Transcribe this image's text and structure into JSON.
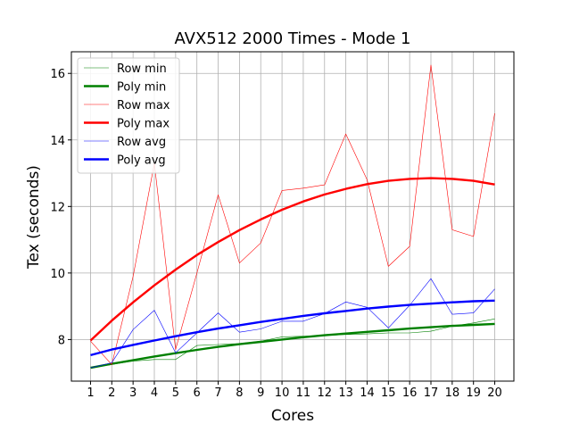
{
  "chart_data": {
    "type": "line",
    "title": "AVX512 2000 Times - Mode 1",
    "xlabel": "Cores",
    "ylabel": "Tex (seconds)",
    "x": [
      1,
      2,
      3,
      4,
      5,
      6,
      7,
      8,
      9,
      10,
      11,
      12,
      13,
      14,
      15,
      16,
      17,
      18,
      19,
      20
    ],
    "xlim": [
      0.1,
      20.9
    ],
    "ylim": [
      6.75,
      16.65
    ],
    "yticks": [
      8,
      10,
      12,
      14,
      16
    ],
    "grid": true,
    "legend_position": "upper-left",
    "series": [
      {
        "name": "Row min",
        "color": "#008000",
        "style": "thin",
        "values": [
          7.15,
          7.25,
          7.35,
          7.4,
          7.4,
          7.82,
          7.85,
          7.88,
          7.95,
          8.08,
          8.1,
          8.12,
          8.15,
          8.17,
          8.2,
          8.2,
          8.25,
          8.4,
          8.5,
          8.62
        ]
      },
      {
        "name": "Poly min",
        "color": "#008000",
        "style": "thick",
        "values": [
          7.15,
          7.27,
          7.38,
          7.49,
          7.59,
          7.69,
          7.78,
          7.86,
          7.93,
          8.0,
          8.07,
          8.13,
          8.18,
          8.23,
          8.28,
          8.33,
          8.37,
          8.41,
          8.44,
          8.47
        ]
      },
      {
        "name": "Row max",
        "color": "#ff0000",
        "style": "thin",
        "values": [
          7.95,
          7.25,
          9.9,
          13.3,
          7.7,
          10.0,
          12.35,
          10.3,
          10.9,
          12.48,
          12.55,
          12.65,
          14.18,
          12.8,
          10.2,
          10.8,
          16.25,
          11.3,
          11.1,
          14.8
        ]
      },
      {
        "name": "Poly max",
        "color": "#ff0000",
        "style": "thick",
        "values": [
          7.97,
          8.57,
          9.12,
          9.63,
          10.1,
          10.54,
          10.93,
          11.29,
          11.61,
          11.9,
          12.15,
          12.36,
          12.53,
          12.67,
          12.77,
          12.83,
          12.85,
          12.83,
          12.77,
          12.66
        ]
      },
      {
        "name": "Row avg",
        "color": "#0000ff",
        "style": "thin",
        "values": [
          7.15,
          7.3,
          8.3,
          8.88,
          7.6,
          8.2,
          8.8,
          8.22,
          8.32,
          8.55,
          8.55,
          8.78,
          9.13,
          8.97,
          8.35,
          9.03,
          9.83,
          8.76,
          8.8,
          9.52
        ]
      },
      {
        "name": "Poly avg",
        "color": "#0000ff",
        "style": "thick",
        "values": [
          7.53,
          7.7,
          7.84,
          7.97,
          8.1,
          8.22,
          8.33,
          8.43,
          8.53,
          8.62,
          8.71,
          8.79,
          8.86,
          8.93,
          8.99,
          9.04,
          9.08,
          9.12,
          9.15,
          9.17
        ]
      }
    ]
  }
}
